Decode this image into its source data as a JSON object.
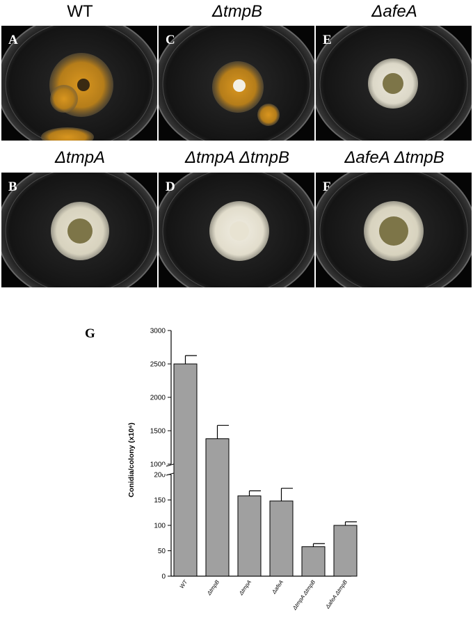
{
  "strains": [
    {
      "letter": "A",
      "name": "WT"
    },
    {
      "letter": "B",
      "name": "ΔtmpA"
    },
    {
      "letter": "C",
      "name": "ΔtmpB"
    },
    {
      "letter": "D",
      "name": "ΔtmpA ΔtmpB"
    },
    {
      "letter": "E",
      "name": "ΔafeA"
    },
    {
      "letter": "F",
      "name": "ΔafeA ΔtmpB"
    }
  ],
  "colors": {
    "plate_background": "#050505",
    "pigmented_conidia": "#c98a1c",
    "white_colony": "#e6e2d3",
    "colony_center": "#7d7548",
    "bar_fill": "#a0a0a0"
  },
  "chart_data": {
    "panel_letter": "G",
    "type": "bar",
    "ylabel": "Conidia/colony (x10⁶)",
    "categories": [
      "WT",
      "ΔtmpB",
      "ΔtmpA",
      "ΔafeA",
      "ΔtmpA ΔtmpB",
      "ΔafeA ΔtmpB"
    ],
    "values": [
      2500,
      1380,
      158,
      148,
      58,
      100
    ],
    "errors": [
      125,
      200,
      10,
      25,
      6,
      7
    ],
    "axis_break": {
      "lower_range": [
        0,
        200
      ],
      "upper_range": [
        1000,
        3000
      ]
    },
    "yticks_lower": [
      "0",
      "50",
      "100",
      "150",
      "200"
    ],
    "yticks_upper": [
      "1000",
      "1500",
      "2000",
      "2500",
      "3000"
    ],
    "grid": false,
    "legend": false
  }
}
